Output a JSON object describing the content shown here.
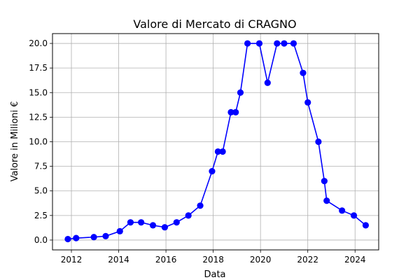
{
  "chart_data": {
    "type": "line",
    "title": "Valore di Mercato di CRAGNO",
    "xlabel": "Data",
    "ylabel": "Valore in Milioni €",
    "xlim": [
      2011.2,
      2025.0
    ],
    "ylim": [
      -1.0,
      21.0
    ],
    "grid": true,
    "color": "#0000ff",
    "x_ticks": [
      2012,
      2014,
      2016,
      2018,
      2020,
      2022,
      2024
    ],
    "x_tick_labels": [
      "2012",
      "2014",
      "2016",
      "2018",
      "2020",
      "2022",
      "2024"
    ],
    "y_ticks": [
      0.0,
      2.5,
      5.0,
      7.5,
      10.0,
      12.5,
      15.0,
      17.5,
      20.0
    ],
    "y_tick_labels": [
      "0.0",
      "2.5",
      "5.0",
      "7.5",
      "10.0",
      "12.5",
      "15.0",
      "17.5",
      "20.0"
    ],
    "series": [
      {
        "name": "Valore di Mercato",
        "x": [
          2011.85,
          2012.2,
          2012.95,
          2013.45,
          2014.05,
          2014.5,
          2014.95,
          2015.45,
          2015.95,
          2016.45,
          2016.95,
          2017.45,
          2017.95,
          2018.2,
          2018.4,
          2018.75,
          2018.95,
          2019.15,
          2019.45,
          2019.95,
          2020.3,
          2020.7,
          2021.0,
          2021.4,
          2021.8,
          2022.0,
          2022.45,
          2022.7,
          2022.8,
          2023.45,
          2023.95,
          2024.45
        ],
        "values": [
          0.1,
          0.2,
          0.3,
          0.4,
          0.9,
          1.8,
          1.8,
          1.5,
          1.3,
          1.8,
          2.5,
          3.5,
          7.0,
          9.0,
          9.0,
          13.0,
          13.0,
          15.0,
          20.0,
          20.0,
          16.0,
          20.0,
          20.0,
          20.0,
          17.0,
          14.0,
          10.0,
          6.0,
          4.0,
          3.0,
          2.5,
          1.5
        ]
      }
    ]
  }
}
